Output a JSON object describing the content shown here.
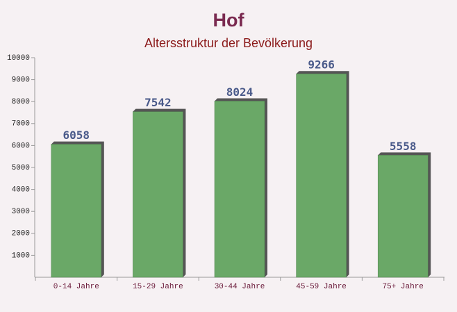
{
  "chart_data": {
    "type": "bar",
    "title": "Hof",
    "subtitle": "Altersstruktur der Bevölkerung",
    "categories": [
      "0-14 Jahre",
      "15-29 Jahre",
      "30-44 Jahre",
      "45-59 Jahre",
      "75+ Jahre"
    ],
    "values": [
      6058,
      7542,
      8024,
      9266,
      5558
    ],
    "color": "#6aa867",
    "ylim": [
      0,
      10000
    ],
    "yticks": [
      1000,
      2000,
      3000,
      4000,
      5000,
      6000,
      7000,
      8000,
      9000,
      10000
    ],
    "grid": false
  }
}
